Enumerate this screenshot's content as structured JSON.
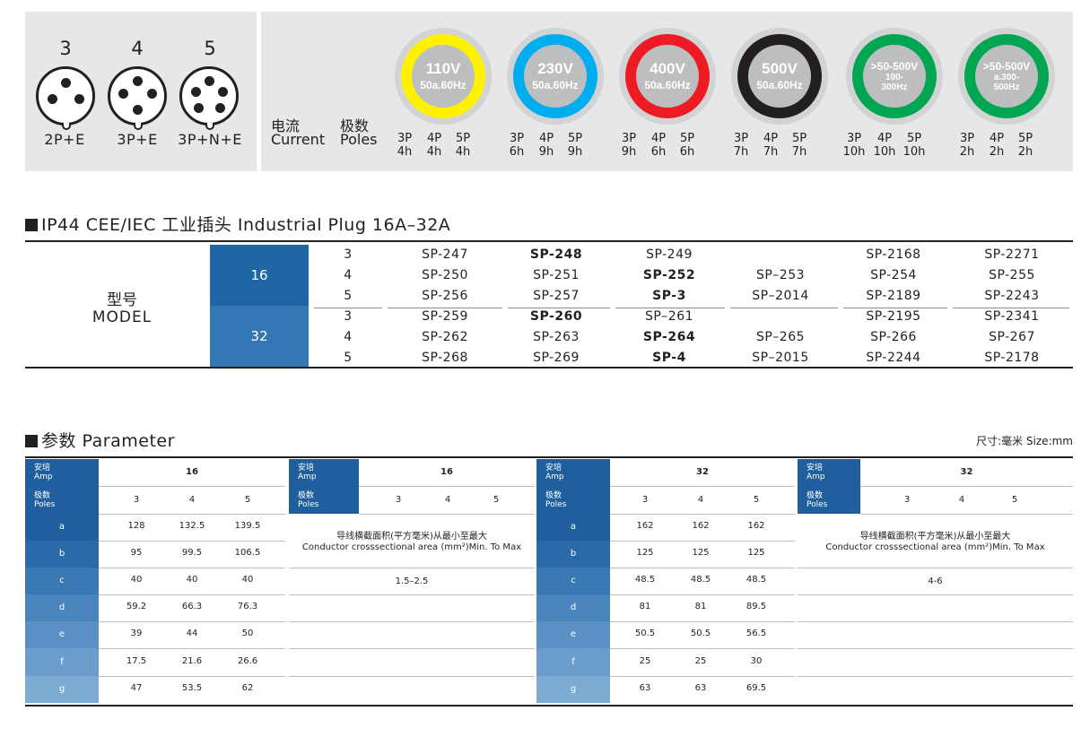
{
  "poles": [
    {
      "num": "3",
      "label": "2P+E"
    },
    {
      "num": "4",
      "label": "3P+E"
    },
    {
      "num": "5",
      "label": "3P+N+E"
    }
  ],
  "current_zh": "电流",
  "current_en": "Current",
  "poles_zh": "极数",
  "poles_en": "Poles",
  "voltages": [
    {
      "v": "110V",
      "freq": "50a.60Hz",
      "color": "#fff200",
      "p": [
        "3P",
        "4P",
        "5P"
      ],
      "h": [
        "4h",
        "4h",
        "4h"
      ]
    },
    {
      "v": "230V",
      "freq": "50a.60Hz",
      "color": "#00aeef",
      "p": [
        "3P",
        "4P",
        "5P"
      ],
      "h": [
        "6h",
        "9h",
        "9h"
      ]
    },
    {
      "v": "400V",
      "freq": "50a.60Hz",
      "color": "#ed1c24",
      "p": [
        "3P",
        "4P",
        "5P"
      ],
      "h": [
        "9h",
        "6h",
        "6h"
      ]
    },
    {
      "v": "500V",
      "freq": "50a.60Hz",
      "color": "#231f20",
      "p": [
        "3P",
        "4P",
        "5P"
      ],
      "h": [
        "7h",
        "7h",
        "7h"
      ]
    },
    {
      "v": ">50-500V",
      "freq": "100-\n300Hz",
      "color": "#00a651",
      "p": [
        "3P",
        "4P",
        "5P"
      ],
      "h": [
        "10h",
        "10h",
        "10h"
      ]
    },
    {
      "v": ">50-500V",
      "freq": "a.300-\n500Hz",
      "color": "#00a651",
      "p": [
        "3P",
        "4P",
        "5P"
      ],
      "h": [
        "2h",
        "2h",
        "2h"
      ]
    }
  ],
  "plug_title": "IP44 CEE/IEC 工业插头 Industrial Plug  16A–32A",
  "model_zh": "型号",
  "model_en": "MODEL",
  "amp_colors": [
    "#1f66a5",
    "#3377b5"
  ],
  "models": [
    {
      "amp": "16",
      "rows": [
        {
          "pole": "3",
          "cells": [
            "SP-247",
            "SP-248",
            "SP-249",
            "",
            "SP-2168",
            "SP-2271"
          ],
          "bold": [
            false,
            true,
            false,
            false,
            false,
            false
          ]
        },
        {
          "pole": "4",
          "cells": [
            "SP-250",
            "SP-251",
            "SP-252",
            "SP–253",
            "SP-254",
            "SP-255"
          ],
          "bold": [
            false,
            false,
            true,
            false,
            false,
            false
          ]
        },
        {
          "pole": "5",
          "cells": [
            "SP-256",
            "SP-257",
            "SP-3",
            "SP–2014",
            "SP-2189",
            "SP-2243"
          ],
          "bold": [
            false,
            false,
            true,
            false,
            false,
            false
          ]
        }
      ]
    },
    {
      "amp": "32",
      "rows": [
        {
          "pole": "3",
          "cells": [
            "SP-259",
            "SP-260",
            "SP–261",
            "",
            "SP-2195",
            "SP-2341"
          ],
          "bold": [
            false,
            true,
            false,
            false,
            false,
            false
          ]
        },
        {
          "pole": "4",
          "cells": [
            "SP-262",
            "SP-263",
            "SP-264",
            "SP–265",
            "SP-266",
            "SP-267"
          ],
          "bold": [
            false,
            false,
            true,
            false,
            false,
            false
          ]
        },
        {
          "pole": "5",
          "cells": [
            "SP-268",
            "SP-269",
            "SP-4",
            "SP–2015",
            "SP-2244",
            "SP-2178"
          ],
          "bold": [
            false,
            false,
            true,
            false,
            false,
            false
          ]
        }
      ]
    }
  ],
  "param_title": "参数 Parameter",
  "size_note": "尺寸:毫米  Size:mm",
  "header_amp": [
    "安培",
    "Amp"
  ],
  "header_poles": [
    "极数",
    "Poles"
  ],
  "row_colors": [
    "#1f5f9e",
    "#2b6aa8",
    "#3a78b3",
    "#4a84bc",
    "#5a90c4",
    "#6b9dcc",
    "#7caad3"
  ],
  "param_groups": [
    {
      "amp": "16",
      "poles": [
        "3",
        "4",
        "5"
      ],
      "rows": [
        {
          "k": "a",
          "v": [
            "128",
            "132.5",
            "139.5"
          ]
        },
        {
          "k": "b",
          "v": [
            "95",
            "99.5",
            "106.5"
          ]
        },
        {
          "k": "c",
          "v": [
            "40",
            "40",
            "40"
          ]
        },
        {
          "k": "d",
          "v": [
            "59.2",
            "66.3",
            "76.3"
          ]
        },
        {
          "k": "e",
          "v": [
            "39",
            "44",
            "50"
          ]
        },
        {
          "k": "f",
          "v": [
            "17.5",
            "21.6",
            "26.6"
          ]
        },
        {
          "k": "g",
          "v": [
            "47",
            "53.5",
            "62"
          ]
        }
      ]
    },
    {
      "amp": "32",
      "poles": [
        "3",
        "4",
        "5"
      ],
      "rows": [
        {
          "k": "a",
          "v": [
            "162",
            "162",
            "162"
          ]
        },
        {
          "k": "b",
          "v": [
            "125",
            "125",
            "125"
          ]
        },
        {
          "k": "c",
          "v": [
            "48.5",
            "48.5",
            "48.5"
          ]
        },
        {
          "k": "d",
          "v": [
            "81",
            "81",
            "89.5"
          ]
        },
        {
          "k": "e",
          "v": [
            "50.5",
            "50.5",
            "56.5"
          ]
        },
        {
          "k": "f",
          "v": [
            "25",
            "25",
            "30"
          ]
        },
        {
          "k": "g",
          "v": [
            "63",
            "63",
            "69.5"
          ]
        }
      ]
    }
  ],
  "conductor_groups": [
    {
      "amp": "16",
      "poles": [
        "3",
        "4",
        "5"
      ],
      "note_zh": "导线横截面积(平方毫米)从最小至最大",
      "note_en": "Conductor crosssectional area (mm²)Min. To Max",
      "value": "1.5–2.5"
    },
    {
      "amp": "32",
      "poles": [
        "3",
        "4",
        "5"
      ],
      "note_zh": "导线横截面积(平方毫米)从最小至最大",
      "note_en": "Conductor crosssectional area (mm²)Min. To Max",
      "value": "4-6"
    }
  ]
}
